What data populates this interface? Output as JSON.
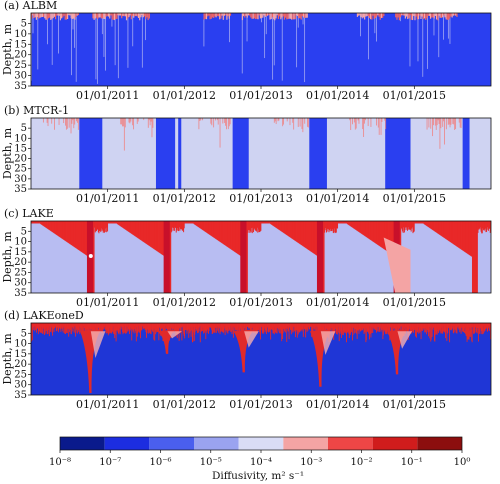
{
  "chart_data": [
    {
      "type": "heatmap",
      "title": "(a) ALBM",
      "ylabel": "Depth, m",
      "yticks": [
        5,
        10,
        15,
        20,
        25,
        30,
        35
      ],
      "ylim": [
        35,
        0
      ],
      "xticks": [
        "01/01/2011",
        "01/01/2012",
        "01/01/2013",
        "01/01/2014",
        "01/01/2015"
      ],
      "xlim": [
        2010.0,
        2016.0
      ],
      "background": "#2a3ff0",
      "surface_layer": {
        "depth": 2.5,
        "color": "#f6a7a7"
      },
      "mixing_periods": [
        [
          2010.0,
          2010.62
        ],
        [
          2010.8,
          2011.55
        ],
        [
          2012.25,
          2012.6
        ],
        [
          2012.75,
          2013.6
        ],
        [
          2014.25,
          2014.6
        ],
        [
          2014.75,
          2015.55
        ]
      ],
      "mixing_color": "#c9c9f2"
    },
    {
      "type": "heatmap",
      "title": "(b) MTCR-1",
      "ylabel": "Depth, m",
      "yticks": [
        5,
        10,
        15,
        20,
        25,
        30,
        35
      ],
      "ylim": [
        35,
        0
      ],
      "xticks": [
        "01/01/2011",
        "01/01/2012",
        "01/01/2013",
        "01/01/2014",
        "01/01/2015"
      ],
      "xlim": [
        2010.0,
        2016.0
      ],
      "background": "#cfd3f2",
      "blue_blocks": [
        [
          2010.63,
          2010.93
        ],
        [
          2011.63,
          2011.88
        ],
        [
          2011.92,
          2011.96
        ],
        [
          2012.63,
          2012.84
        ],
        [
          2013.63,
          2013.86
        ],
        [
          2014.62,
          2014.95
        ],
        [
          2015.63,
          2015.72
        ]
      ],
      "blue_color": "#2a3ff0",
      "streak_color": "#f08080"
    },
    {
      "type": "heatmap",
      "title": "(c) LAKE",
      "ylabel": "Depth, m",
      "yticks": [
        5,
        10,
        15,
        20,
        25,
        30,
        35
      ],
      "ylim": [
        35,
        0
      ],
      "xticks": [
        "01/01/2011",
        "01/01/2012",
        "01/01/2013",
        "01/01/2014",
        "01/01/2015"
      ],
      "xlim": [
        2010.0,
        2016.0
      ],
      "background": "#b8bdf2",
      "surface_color": "#e82828",
      "overturn_years": [
        2010.75,
        2011.75,
        2012.75,
        2013.75,
        2014.75
      ],
      "deep_color": "#c8102a"
    },
    {
      "type": "heatmap",
      "title": "(d) LAKEoneD",
      "ylabel": "Depth, m",
      "yticks": [
        5,
        10,
        15,
        20,
        25,
        30,
        35
      ],
      "ylim": [
        35,
        0
      ],
      "xticks": [
        "01/01/2011",
        "01/01/2012",
        "01/01/2013",
        "01/01/2014",
        "01/01/2015"
      ],
      "xlim": [
        2010.0,
        2016.0
      ],
      "background": "#1f36d6",
      "surface_color": "#e82828",
      "plumes": [
        [
          2010.72,
          34
        ],
        [
          2011.72,
          15
        ],
        [
          2012.72,
          24
        ],
        [
          2013.72,
          31
        ],
        [
          2014.72,
          25
        ],
        [
          2015.65,
          8
        ]
      ]
    }
  ],
  "colorbar": {
    "label": "Diffusivity, m² s⁻¹",
    "label_main": "Diffusivity, ",
    "label_unit": "m² s⁻¹",
    "ticks": [
      "10⁻⁸",
      "10⁻⁷",
      "10⁻⁶",
      "10⁻⁵",
      "10⁻⁴",
      "10⁻³",
      "10⁻²",
      "10⁻¹",
      "10⁰"
    ],
    "colors": [
      "#0a1a8c",
      "#1c2de0",
      "#4a5fee",
      "#9aa3f0",
      "#d9dcf6",
      "#f4a4a4",
      "#ee4646",
      "#d01c1c",
      "#8c0e0e"
    ]
  }
}
